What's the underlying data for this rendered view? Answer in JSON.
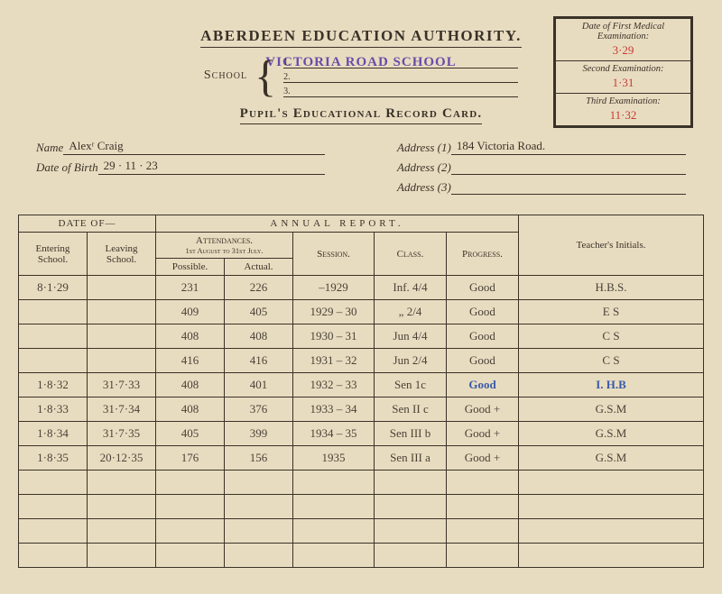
{
  "medical": {
    "label1": "Date of First Medical Examination:",
    "value1": "3·29",
    "label2": "Second Examination:",
    "value2": "1·31",
    "label3": "Third Examination:",
    "value3": "11·32"
  },
  "header": {
    "authority": "ABERDEEN EDUCATION AUTHORITY.",
    "school_stamp": "VICTORIA ROAD SCHOOL",
    "school_label": "School",
    "subtitle": "Pupil's Educational Record Card."
  },
  "pupil": {
    "name_label": "Name",
    "name": "Alexʳ Craig",
    "dob_label": "Date of Birth",
    "dob": "29 · 11 · 23",
    "addr1_label": "Address (1)",
    "addr1": "184  Victoria  Road.",
    "addr2_label": "Address (2)",
    "addr2": "",
    "addr3_label": "Address (3)",
    "addr3": ""
  },
  "table_headers": {
    "date_of": "DATE OF—",
    "annual": "ANNUAL REPORT.",
    "entering": "Entering School.",
    "leaving": "Leaving School.",
    "attendances": "Attendances.",
    "attend_sub": "1st August to 31st July.",
    "possible": "Possible.",
    "actual": "Actual.",
    "session": "Session.",
    "class": "Class.",
    "progress": "Progress.",
    "initials": "Teacher's Initials."
  },
  "rows": [
    {
      "entering": "8·1·29",
      "leaving": "",
      "possible": "231",
      "actual": "226",
      "session": "–1929",
      "class": "Inf. 4/4",
      "progress": "Good",
      "initials": "H.B.S."
    },
    {
      "entering": "",
      "leaving": "",
      "possible": "409",
      "actual": "405",
      "session": "1929 – 30",
      "class": "„  2/4",
      "progress": "Good",
      "initials": "E S"
    },
    {
      "entering": "",
      "leaving": "",
      "possible": "408",
      "actual": "408",
      "session": "1930 – 31",
      "class": "Jun 4/4",
      "progress": "Good",
      "initials": "C S"
    },
    {
      "entering": "",
      "leaving": "",
      "possible": "416",
      "actual": "416",
      "session": "1931 – 32",
      "class": "Jun 2/4",
      "progress": "Good",
      "initials": "C S"
    },
    {
      "entering": "1·8·32",
      "leaving": "31·7·33",
      "possible": "408",
      "actual": "401",
      "session": "1932 – 33",
      "class": "Sen 1c",
      "progress": "Good",
      "initials": "I. H.B"
    },
    {
      "entering": "1·8·33",
      "leaving": "31·7·34",
      "possible": "408",
      "actual": "376",
      "session": "1933 – 34",
      "class": "Sen II c",
      "progress": "Good +",
      "initials": "G.S.M"
    },
    {
      "entering": "1·8·34",
      "leaving": "31·7·35",
      "possible": "405",
      "actual": "399",
      "session": "1934 – 35",
      "class": "Sen III b",
      "progress": "Good +",
      "initials": "G.S.M"
    },
    {
      "entering": "1·8·35",
      "leaving": "20·12·35",
      "possible": "176",
      "actual": "156",
      "session": "1935",
      "class": "Sen III a",
      "progress": "Good +",
      "initials": "G.S.M"
    }
  ],
  "empty_rows": 4,
  "colors": {
    "paper": "#e8dcc0",
    "ink": "#3a3228",
    "red": "#c83834",
    "stamp": "#6b4ba8",
    "blue_ink": "#3a5aa8"
  }
}
